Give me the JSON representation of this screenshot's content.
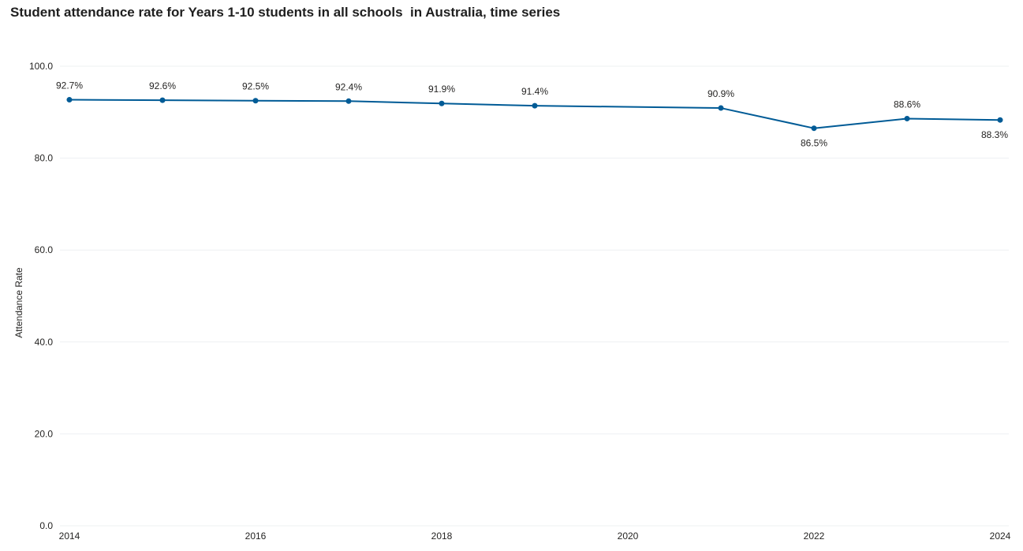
{
  "title": "Student attendance rate for Years 1-10 students in all schools  in Australia, time series",
  "colors": {
    "line": "#005b96",
    "gridline": "#eef0f2",
    "text": "#252423"
  },
  "chart_data": {
    "type": "line",
    "title": "Student attendance rate for Years 1-10 students in all schools  in Australia, time series",
    "xlabel": "",
    "ylabel": "Attendance Rate",
    "xlim": [
      2014,
      2024
    ],
    "ylim": [
      0,
      100
    ],
    "x_ticks": [
      "2014",
      "2016",
      "2018",
      "2020",
      "2022",
      "2024"
    ],
    "y_ticks": [
      "0.0",
      "20.0",
      "40.0",
      "60.0",
      "80.0",
      "100.0"
    ],
    "grid": true,
    "series": [
      {
        "x": [
          2014,
          2015,
          2016,
          2017,
          2018,
          2019,
          2021,
          2022,
          2023,
          2024
        ],
        "values": [
          92.7,
          92.6,
          92.5,
          92.4,
          91.9,
          91.4,
          90.9,
          86.5,
          88.6,
          88.3
        ],
        "labels": [
          "92.7%",
          "92.6%",
          "92.5%",
          "92.4%",
          "91.9%",
          "91.4%",
          "90.9%",
          "86.5%",
          "88.6%",
          "88.3%"
        ]
      }
    ]
  }
}
